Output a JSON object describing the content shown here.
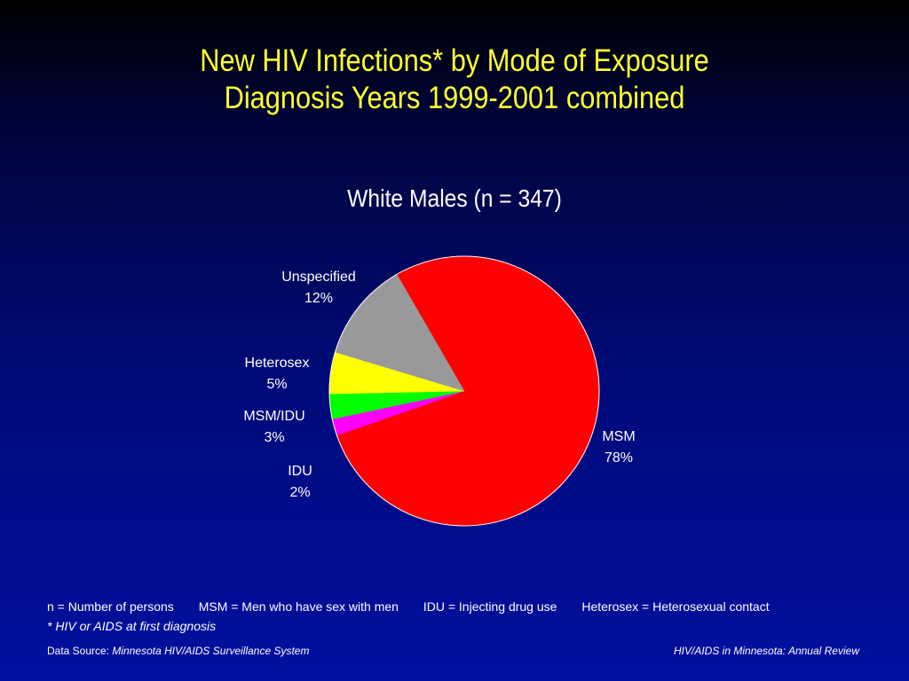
{
  "header": {
    "title_line1": "New HIV Infections* by Mode of Exposure",
    "title_line2": "Diagnosis Years 1999-2001 combined"
  },
  "chart_data": {
    "type": "pie",
    "title": "White Males (n = 347)",
    "slices": [
      {
        "label": "MSM",
        "value": 78,
        "value_label": "78%",
        "color": "#ff0000"
      },
      {
        "label": "IDU",
        "value": 2,
        "value_label": "2%",
        "color": "#ff00ff"
      },
      {
        "label": "MSM/IDU",
        "value": 3,
        "value_label": "3%",
        "color": "#00ff00"
      },
      {
        "label": "Heterosex",
        "value": 5,
        "value_label": "5%",
        "color": "#ffff00"
      },
      {
        "label": "Unspecified",
        "value": 12,
        "value_label": "12%",
        "color": "#999999"
      }
    ]
  },
  "legend": {
    "n_def": "n = Number of persons",
    "msm_def": "MSM = Men who have sex with men",
    "idu_def": "IDU = Injecting drug use",
    "hetero_def": "Heterosex = Heterosexual contact",
    "footnote": "* HIV or AIDS at first diagnosis"
  },
  "footer": {
    "source_prefix": "Data Source:",
    "source_name": "Minnesota HIV/AIDS Surveillance System",
    "report_name": "HIV/AIDS in Minnesota: Annual Review"
  }
}
